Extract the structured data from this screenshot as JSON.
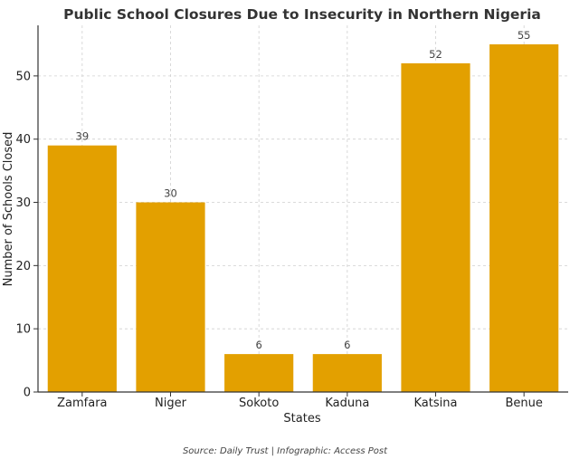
{
  "chart_data": {
    "type": "bar",
    "title": "Public School Closures Due to Insecurity in Northern Nigeria",
    "xlabel": "States",
    "ylabel": "Number of Schools Closed",
    "categories": [
      "Zamfara",
      "Niger",
      "Sokoto",
      "Kaduna",
      "Katsina",
      "Benue"
    ],
    "values": [
      39,
      30,
      6,
      6,
      52,
      55
    ],
    "data_labels": [
      "39",
      "30",
      "6",
      "6",
      "52",
      "55"
    ],
    "yticks": [
      0,
      10,
      20,
      30,
      40,
      50
    ],
    "ylim": [
      0,
      58
    ],
    "grid": true,
    "bar_color": "#e3a000",
    "grid_color": "#d0d0d0"
  },
  "source": "Source: Daily Trust | Infographic: Access Post"
}
